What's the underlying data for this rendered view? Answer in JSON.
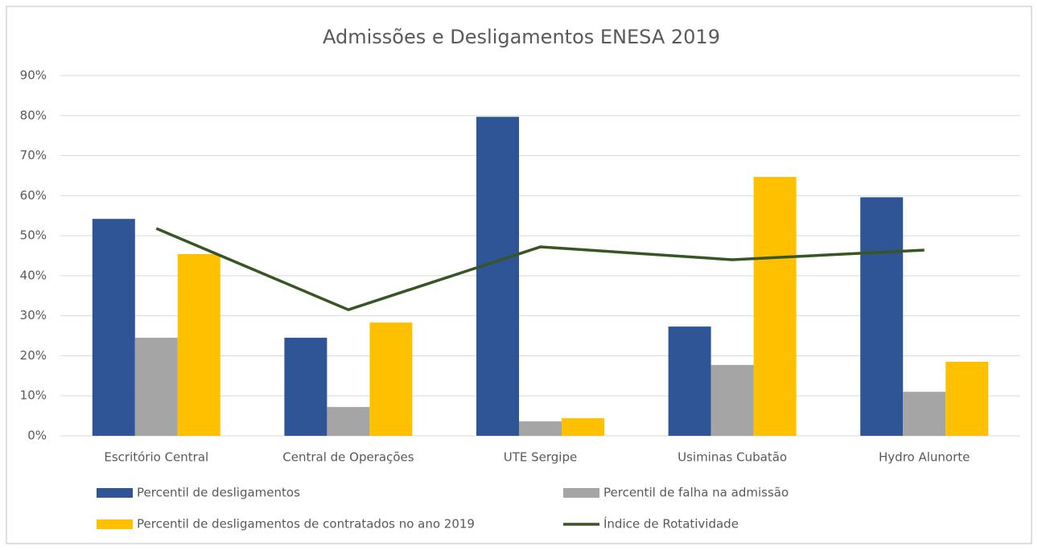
{
  "chart_data": {
    "type": "bar",
    "title": "Admissões e Desligamentos ENESA 2019",
    "categories": [
      "Escritório Central",
      "Central de Operações",
      "UTE Sergipe",
      "Usiminas Cubatão",
      "Hydro Alunorte"
    ],
    "series": [
      {
        "name": "Percentil de desligamentos",
        "color": "#2f5597",
        "values": [
          54.2,
          24.5,
          79.7,
          27.3,
          59.6
        ]
      },
      {
        "name": "Percentil de falha na admissão",
        "color": "#a5a5a5",
        "values": [
          24.5,
          7.2,
          3.6,
          17.7,
          11
        ]
      },
      {
        "name": "Percentil de desligamentos de contratados no ano 2019",
        "color": "#ffc000",
        "values": [
          45.4,
          28.3,
          4.4,
          64.7,
          18.5
        ]
      },
      {
        "name": "Índice de Rotatividade",
        "color": "#375623",
        "type": "line",
        "values": [
          51.8,
          31.5,
          47.2,
          44,
          46.4
        ]
      }
    ],
    "ylim": [
      0,
      90
    ],
    "yticks": [
      {
        "value": 0,
        "label": "0%"
      },
      {
        "value": 10,
        "label": "10%"
      },
      {
        "value": 20,
        "label": "20%"
      },
      {
        "value": 30,
        "label": "30%"
      },
      {
        "value": 40,
        "label": "40%"
      },
      {
        "value": 50,
        "label": "50%"
      },
      {
        "value": 60,
        "label": "60%"
      },
      {
        "value": 70,
        "label": "70%"
      },
      {
        "value": 80,
        "label": "80%"
      },
      {
        "value": 90,
        "label": "90%"
      }
    ],
    "grid": true,
    "legend": "bottom"
  }
}
